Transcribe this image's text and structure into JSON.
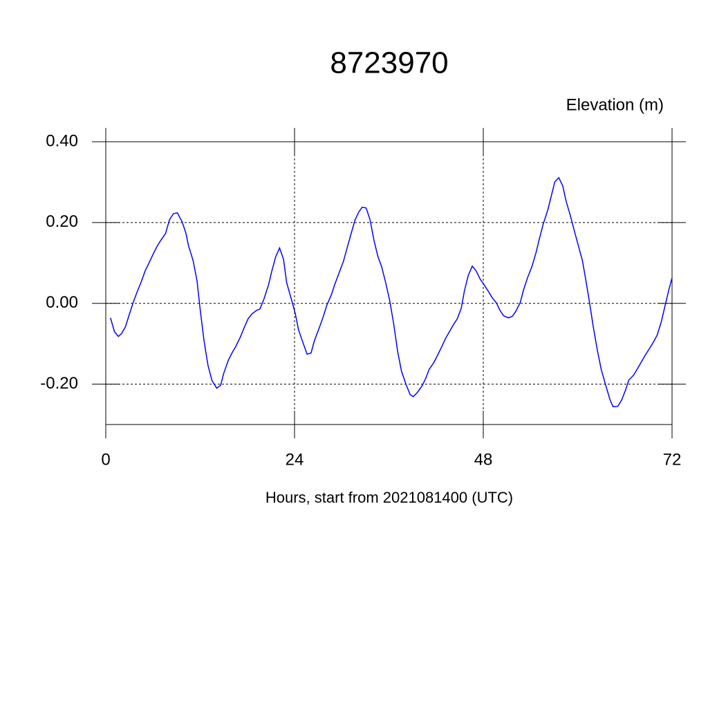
{
  "chart_data": {
    "type": "line",
    "title": "8723970",
    "subtitle": "Elevation (m)",
    "xlabel": "Hours, start from 2021081400 (UTC)",
    "xlim": [
      0,
      72
    ],
    "xticks": [
      0,
      24,
      48,
      72
    ],
    "ylim": [
      -0.3,
      0.4
    ],
    "yticks": [
      {
        "value": 0.4,
        "label": "0.40"
      },
      {
        "value": 0.2,
        "label": "0.20"
      },
      {
        "value": 0,
        "label": "0.00"
      },
      {
        "value": -0.2,
        "label": "-0.20"
      }
    ],
    "grid": true,
    "series": [
      {
        "color": "#0000ff",
        "x": [
          0.6,
          1.1,
          1.6,
          2.0,
          2.5,
          3.0,
          3.5,
          4.0,
          4.5,
          5.0,
          5.5,
          6.1,
          6.6,
          7.0,
          7.6,
          8.1,
          8.6,
          9.1,
          9.7,
          10.2,
          10.5,
          11.1,
          11.6,
          12.0,
          12.5,
          13.0,
          13.5,
          14.1,
          14.6,
          15.0,
          15.6,
          16.1,
          16.5,
          17.1,
          17.6,
          18.1,
          18.6,
          19.2,
          19.6,
          20.1,
          20.7,
          21.1,
          21.6,
          22.1,
          22.6,
          23.0,
          23.6,
          24.1,
          24.5,
          25.1,
          25.6,
          26.1,
          26.5,
          27.1,
          27.6,
          28.1,
          28.7,
          29.1,
          29.6,
          30.2,
          30.7,
          31.2,
          31.7,
          32.2,
          32.6,
          33.1,
          33.6,
          34.1,
          34.6,
          35.1,
          35.6,
          36.1,
          36.6,
          37.1,
          37.6,
          38.2,
          38.7,
          39.1,
          39.6,
          40.2,
          40.7,
          41.1,
          41.7,
          42.2,
          42.7,
          43.2,
          43.7,
          44.2,
          44.7,
          45.2,
          45.6,
          46.1,
          46.6,
          47.1,
          47.6,
          48.1,
          48.6,
          49.1,
          49.7,
          50.1,
          50.6,
          51.2,
          51.7,
          52.1,
          52.7,
          53.1,
          53.6,
          54.2,
          54.7,
          55.1,
          55.6,
          56.2,
          56.7,
          57.1,
          57.6,
          58.1,
          58.5,
          59.1,
          59.5,
          60.0,
          60.6,
          61.0,
          61.5,
          62.0,
          62.5,
          63.0,
          63.6,
          64.1,
          64.5,
          65.1,
          65.6,
          66.1,
          66.5,
          67.1,
          67.6,
          68.1,
          68.6,
          69.1,
          69.6,
          70.1,
          70.6,
          71.1,
          71.6,
          72.0
        ],
        "values": [
          -0.036,
          -0.07,
          -0.082,
          -0.075,
          -0.058,
          -0.027,
          0.003,
          0.029,
          0.053,
          0.08,
          0.1,
          0.125,
          0.144,
          0.156,
          0.173,
          0.207,
          0.222,
          0.224,
          0.202,
          0.173,
          0.144,
          0.106,
          0.056,
          -0.015,
          -0.094,
          -0.154,
          -0.191,
          -0.21,
          -0.203,
          -0.173,
          -0.14,
          -0.121,
          -0.108,
          -0.084,
          -0.06,
          -0.038,
          -0.026,
          -0.017,
          -0.014,
          0.01,
          0.046,
          0.079,
          0.115,
          0.137,
          0.109,
          0.051,
          0.01,
          -0.026,
          -0.065,
          -0.099,
          -0.126,
          -0.123,
          -0.094,
          -0.063,
          -0.036,
          -0.005,
          0.022,
          0.046,
          0.072,
          0.103,
          0.138,
          0.173,
          0.207,
          0.227,
          0.238,
          0.236,
          0.207,
          0.156,
          0.116,
          0.089,
          0.05,
          0.007,
          -0.05,
          -0.118,
          -0.168,
          -0.202,
          -0.226,
          -0.231,
          -0.221,
          -0.205,
          -0.185,
          -0.164,
          -0.147,
          -0.128,
          -0.108,
          -0.087,
          -0.07,
          -0.053,
          -0.038,
          -0.012,
          0.031,
          0.07,
          0.092,
          0.08,
          0.06,
          0.046,
          0.031,
          0.015,
          0,
          -0.017,
          -0.031,
          -0.036,
          -0.032,
          -0.021,
          0.002,
          0.032,
          0.062,
          0.092,
          0.125,
          0.157,
          0.195,
          0.231,
          0.27,
          0.301,
          0.311,
          0.291,
          0.255,
          0.215,
          0.185,
          0.149,
          0.106,
          0.062,
          0.003,
          -0.06,
          -0.116,
          -0.164,
          -0.205,
          -0.238,
          -0.256,
          -0.255,
          -0.239,
          -0.214,
          -0.19,
          -0.178,
          -0.162,
          -0.145,
          -0.128,
          -0.113,
          -0.097,
          -0.079,
          -0.048,
          -0.007,
          0.034,
          0.063
        ]
      }
    ]
  }
}
